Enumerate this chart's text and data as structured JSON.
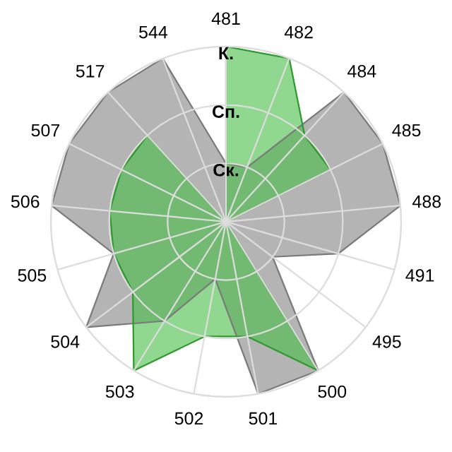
{
  "chart_data": {
    "type": "radar",
    "categories": [
      "481",
      "482",
      "484",
      "485",
      "488",
      "491",
      "495",
      "500",
      "501",
      "502",
      "503",
      "504",
      "505",
      "506",
      "507",
      "517",
      "544"
    ],
    "series": [
      {
        "color": "#b4b4b4",
        "values": [
          1,
          1,
          3,
          3,
          3,
          2,
          1,
          3,
          3,
          1,
          2,
          3,
          2,
          3,
          3,
          3,
          3
        ]
      },
      {
        "color": "#46be46",
        "values": [
          3,
          3,
          2,
          2,
          0,
          0,
          0,
          3,
          2,
          2,
          3,
          2,
          2,
          2,
          2,
          2,
          0
        ]
      }
    ],
    "ylim": [
      0,
      3
    ],
    "yticks": [
      {
        "value": 1,
        "label": "Ск."
      },
      {
        "value": 2,
        "label": "Сп."
      },
      {
        "value": 3,
        "label": "К."
      }
    ],
    "grid": true,
    "legend": false
  }
}
